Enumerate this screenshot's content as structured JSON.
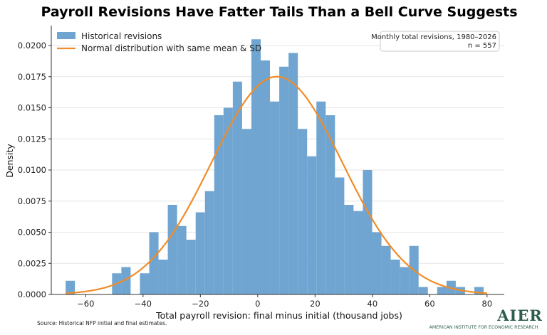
{
  "title": "Payroll Revisions Have Fatter Tails Than a Bell Curve Suggests",
  "source": "Source: Historical NFP initial and final estimates.",
  "annotation": {
    "line1": "Monthly total revisions, 1980–2026",
    "line2": "n = 557"
  },
  "logo": {
    "main": "AIER",
    "sub": "AMERICAN INSTITUTE FOR ECONOMIC RESEARCH"
  },
  "colors": {
    "histogram": "#6fa5d0",
    "normal_curve": "#f28c28",
    "logo": "#2e5e4e"
  },
  "chart_data": {
    "type": "histogram",
    "xlabel": "Total payroll revision: final minus initial (thousand jobs)",
    "ylabel": "Density",
    "xlim": [
      -72,
      86
    ],
    "ylim": [
      0,
      0.0216
    ],
    "xticks": [
      -60,
      -40,
      -20,
      0,
      20,
      40,
      60,
      80
    ],
    "xtick_labels": [
      "−60",
      "−40",
      "−20",
      "0",
      "20",
      "40",
      "60",
      "80"
    ],
    "yticks": [
      0,
      0.0025,
      0.005,
      0.0075,
      0.01,
      0.0125,
      0.015,
      0.0175,
      0.02
    ],
    "ytick_labels": [
      "0.0000",
      "0.0025",
      "0.0050",
      "0.0075",
      "0.0100",
      "0.0125",
      "0.0150",
      "0.0175",
      "0.0200"
    ],
    "grid": "horizontal",
    "legend_position": "top-left",
    "bin_width": 3.24,
    "bin_start": -67,
    "series": [
      {
        "name": "Historical revisions",
        "type": "histogram",
        "bin_left": [
          -67,
          -63.76,
          -60.52,
          -57.28,
          -54.04,
          -50.8,
          -47.56,
          -44.32,
          -41.08,
          -37.84,
          -34.6,
          -31.36,
          -28.12,
          -24.88,
          -21.64,
          -18.4,
          -15.16,
          -11.92,
          -8.68,
          -5.44,
          -2.2,
          1.04,
          4.28,
          7.52,
          10.76,
          14,
          17.24,
          20.48,
          23.72,
          26.96,
          30.2,
          33.44,
          36.68,
          39.92,
          43.16,
          46.4,
          49.64,
          52.88,
          56.12,
          59.36,
          62.6,
          65.84,
          69.08,
          72.32,
          75.56
        ],
        "density": [
          0.0011,
          0,
          0,
          0,
          0,
          0.0017,
          0.0022,
          0,
          0.0017,
          0.005,
          0.0028,
          0.0072,
          0.0055,
          0.0044,
          0.0066,
          0.0083,
          0.0144,
          0.015,
          0.0171,
          0.0133,
          0.0205,
          0.0188,
          0.0155,
          0.0183,
          0.0194,
          0.0133,
          0.0111,
          0.0155,
          0.0144,
          0.0094,
          0.0072,
          0.0067,
          0.01,
          0.005,
          0.0039,
          0.0028,
          0.0022,
          0.0039,
          0.0006,
          0,
          0.0006,
          0.0011,
          0.0006,
          0,
          0.0006
        ]
      },
      {
        "name": "Normal distribution with same mean & SD",
        "type": "line",
        "mean": 6.7,
        "sd": 22.8,
        "x_range": [
          -67,
          80
        ]
      }
    ]
  }
}
